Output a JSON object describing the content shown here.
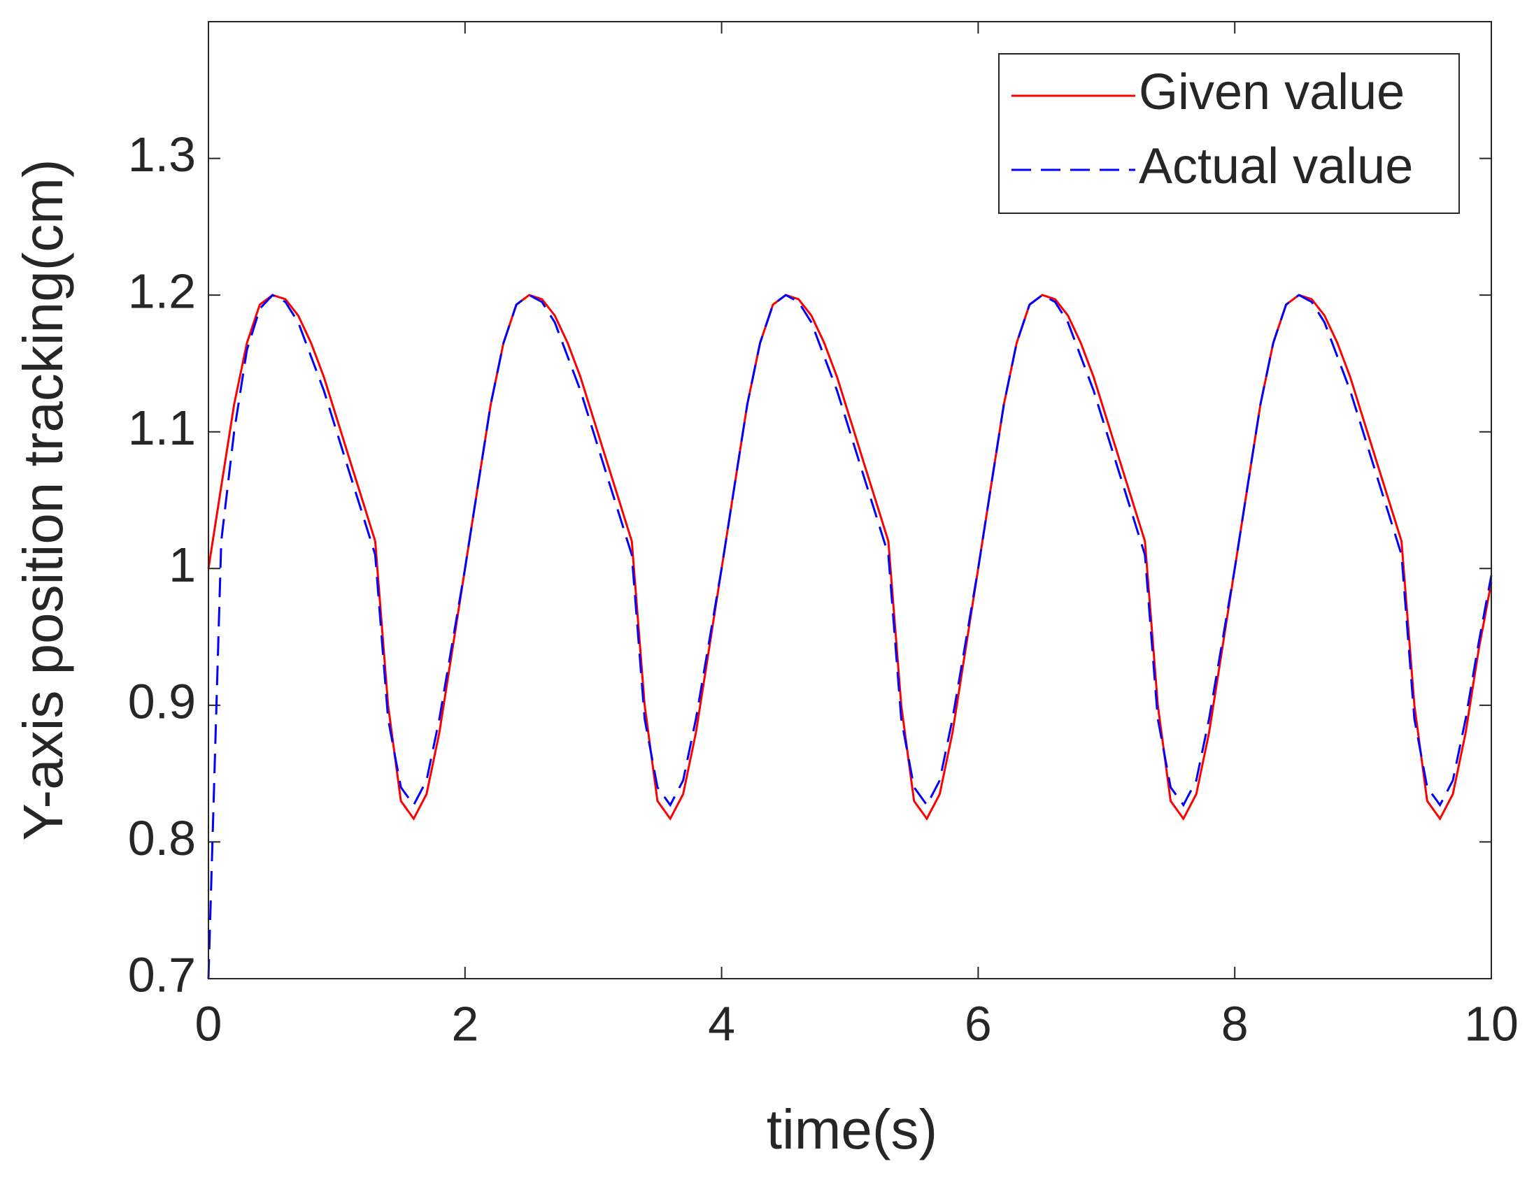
{
  "chart_data": {
    "type": "line",
    "xlabel": "time(s)",
    "ylabel": "Y-axis position tracking(cm)",
    "x": [
      0,
      0.1,
      0.2,
      0.3,
      0.4,
      0.5,
      0.6,
      0.7,
      0.8,
      0.9,
      1,
      1.1,
      1.2,
      1.3,
      1.4,
      1.5,
      1.6,
      1.7,
      1.8,
      1.9,
      2,
      2.1,
      2.2,
      2.3,
      2.4,
      2.5,
      2.6,
      2.7,
      2.8,
      2.9,
      3,
      3.1,
      3.2,
      3.3,
      3.4,
      3.5,
      3.6,
      3.7,
      3.8,
      3.9,
      4,
      4.1,
      4.2,
      4.3,
      4.4,
      4.5,
      4.6,
      4.7,
      4.8,
      4.9,
      5,
      5.1,
      5.2,
      5.3,
      5.4,
      5.5,
      5.6,
      5.7,
      5.8,
      5.9,
      6,
      6.1,
      6.2,
      6.3,
      6.4,
      6.5,
      6.6,
      6.7,
      6.8,
      6.9,
      7,
      7.1,
      7.2,
      7.3,
      7.4,
      7.5,
      7.6,
      7.7,
      7.8,
      7.9,
      8,
      8.1,
      8.2,
      8.3,
      8.4,
      8.5,
      8.6,
      8.7,
      8.8,
      8.9,
      9,
      9.1,
      9.2,
      9.3,
      9.4,
      9.5,
      9.6,
      9.7,
      9.8,
      9.9,
      10
    ],
    "series": [
      {
        "name": "Given value",
        "color": "#ff0000",
        "dash": false,
        "values": [
          1.0,
          1.06,
          1.12,
          1.165,
          1.193,
          1.2,
          1.197,
          1.185,
          1.165,
          1.14,
          1.11,
          1.08,
          1.05,
          1.02,
          0.9,
          0.83,
          0.817,
          0.835,
          0.88,
          0.94,
          1.0,
          1.06,
          1.12,
          1.165,
          1.193,
          1.2,
          1.197,
          1.185,
          1.165,
          1.14,
          1.11,
          1.08,
          1.05,
          1.02,
          0.9,
          0.83,
          0.817,
          0.835,
          0.88,
          0.94,
          1.0,
          1.06,
          1.12,
          1.165,
          1.193,
          1.2,
          1.197,
          1.185,
          1.165,
          1.14,
          1.11,
          1.08,
          1.05,
          1.02,
          0.9,
          0.83,
          0.817,
          0.835,
          0.88,
          0.94,
          1.0,
          1.06,
          1.12,
          1.165,
          1.193,
          1.2,
          1.197,
          1.185,
          1.165,
          1.14,
          1.11,
          1.08,
          1.05,
          1.02,
          0.9,
          0.83,
          0.817,
          0.835,
          0.88,
          0.94,
          1.0,
          1.06,
          1.12,
          1.165,
          1.193,
          1.2,
          1.197,
          1.185,
          1.165,
          1.14,
          1.11,
          1.08,
          1.05,
          1.02,
          0.9,
          0.83,
          0.817,
          0.835,
          0.88,
          0.94,
          0.99
        ]
      },
      {
        "name": "Actual value",
        "color": "#0000ff",
        "dash": true,
        "values": [
          0.7,
          1.02,
          1.1,
          1.16,
          1.19,
          1.2,
          1.195,
          1.18,
          1.155,
          1.13,
          1.1,
          1.07,
          1.04,
          1.01,
          0.89,
          0.84,
          0.827,
          0.845,
          0.89,
          0.945,
          1.0,
          1.06,
          1.12,
          1.165,
          1.193,
          1.2,
          1.195,
          1.18,
          1.155,
          1.13,
          1.1,
          1.07,
          1.04,
          1.01,
          0.89,
          0.84,
          0.827,
          0.845,
          0.89,
          0.945,
          1.0,
          1.06,
          1.12,
          1.165,
          1.193,
          1.2,
          1.195,
          1.18,
          1.155,
          1.13,
          1.1,
          1.07,
          1.04,
          1.01,
          0.89,
          0.84,
          0.827,
          0.845,
          0.89,
          0.945,
          1.0,
          1.06,
          1.12,
          1.165,
          1.193,
          1.2,
          1.195,
          1.18,
          1.155,
          1.13,
          1.1,
          1.07,
          1.04,
          1.01,
          0.89,
          0.84,
          0.827,
          0.845,
          0.89,
          0.945,
          1.0,
          1.06,
          1.12,
          1.165,
          1.193,
          1.2,
          1.195,
          1.18,
          1.155,
          1.13,
          1.1,
          1.07,
          1.04,
          1.01,
          0.89,
          0.84,
          0.827,
          0.845,
          0.89,
          0.945,
          0.995
        ]
      }
    ],
    "xlim": [
      0,
      10
    ],
    "xticks": [
      0,
      2,
      4,
      6,
      8,
      10
    ],
    "ylim": [
      0.7,
      1.4
    ],
    "yticks": [
      0.7,
      0.8,
      0.9,
      1,
      1.1,
      1.2,
      1.3
    ],
    "legend": "upper right",
    "grid": false
  }
}
